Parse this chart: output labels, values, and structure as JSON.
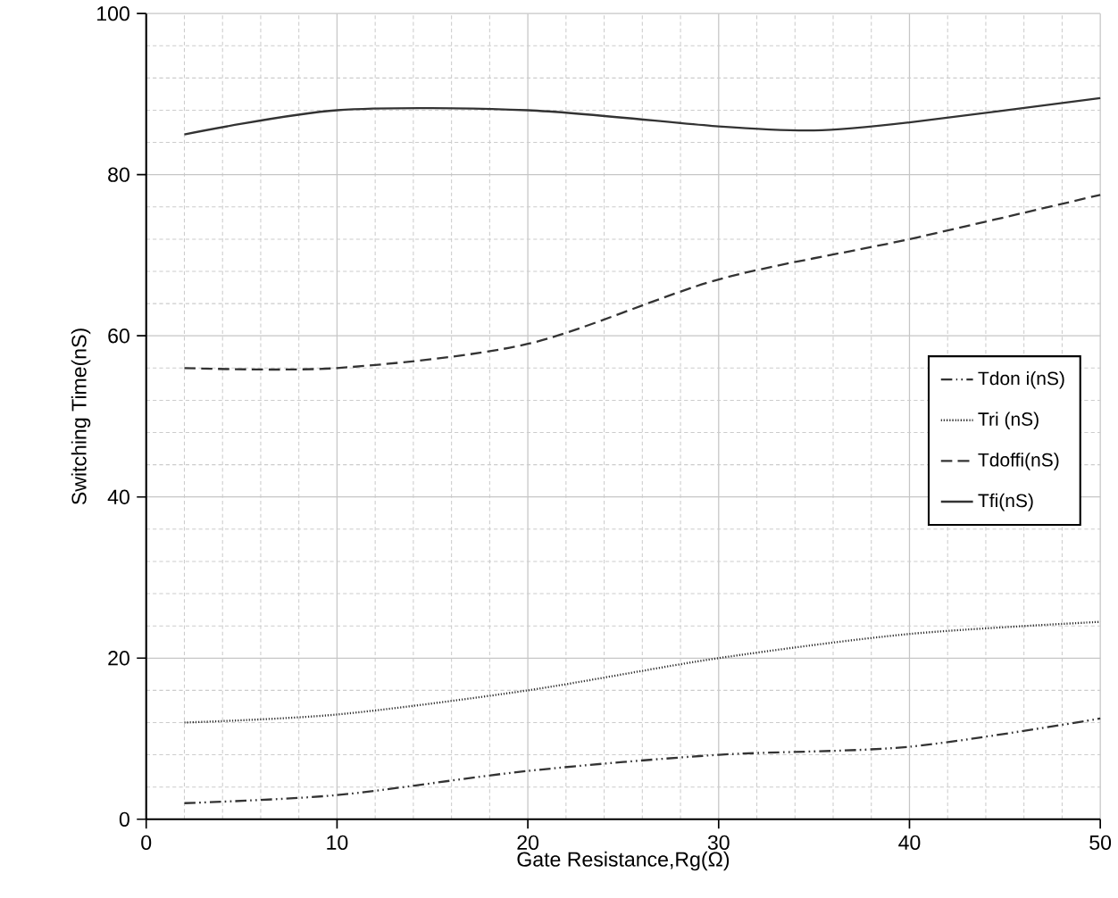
{
  "chart_data": {
    "type": "line",
    "xlabel": "Gate Resistance,Rg(Ω)",
    "ylabel": "Switching Time(nS)",
    "xlim": [
      0,
      50
    ],
    "ylim": [
      0,
      100
    ],
    "xticks": [
      0,
      10,
      20,
      30,
      40,
      50
    ],
    "yticks": [
      0,
      20,
      40,
      60,
      80,
      100
    ],
    "grid": true,
    "legend": "right",
    "marker": "none",
    "series": [
      {
        "name": "Tdon i(nS)",
        "color": "#333333",
        "line_style": "dashdot",
        "x": [
          2,
          10,
          20,
          30,
          40,
          50
        ],
        "values": [
          2,
          3,
          6,
          8,
          9,
          12.5
        ]
      },
      {
        "name": "Tri (nS)",
        "color": "#333333",
        "line_style": "dotted",
        "x": [
          2,
          10,
          20,
          30,
          40,
          50
        ],
        "values": [
          12,
          13,
          16,
          20,
          23,
          24.5
        ]
      },
      {
        "name": "Tdoffi(nS)",
        "color": "#333333",
        "line_style": "dashed",
        "x": [
          2,
          10,
          20,
          30,
          40,
          50
        ],
        "values": [
          56,
          56,
          59,
          67,
          72,
          77.5
        ]
      },
      {
        "name": "Tfi(nS)",
        "color": "#333333",
        "line_style": "solid",
        "x": [
          2,
          10,
          20,
          30,
          35,
          40,
          50
        ],
        "values": [
          85,
          88,
          88,
          86,
          85.5,
          86.5,
          89.5
        ]
      }
    ]
  }
}
